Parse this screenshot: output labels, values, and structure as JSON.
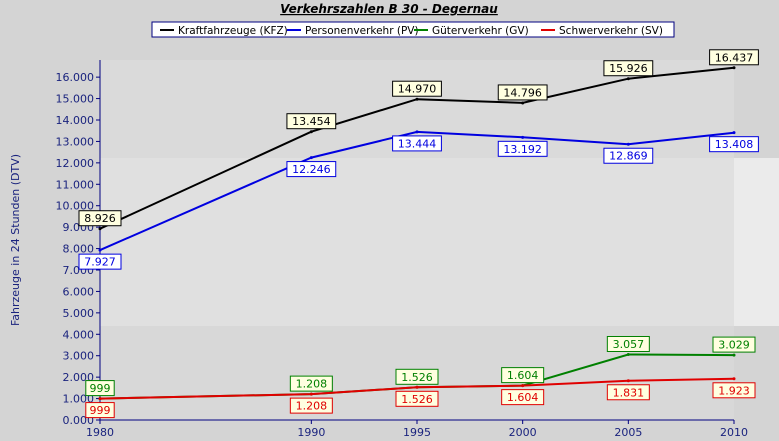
{
  "chart_data": {
    "type": "line",
    "title": "Verkehrszahlen B 30 - Degernau",
    "ylabel": "Fahrzeuge in 24 Stunden (DTV)",
    "xlabel": "",
    "x": [
      1980,
      1990,
      1995,
      2000,
      2005,
      2010
    ],
    "x_ticks": [
      "1980",
      "1990",
      "1995",
      "2000",
      "2005",
      "2010"
    ],
    "ylim": [
      0,
      16800
    ],
    "y_ticks": [
      "0.000",
      "1.000",
      "2.000",
      "3.000",
      "4.000",
      "5.000",
      "6.000",
      "7.000",
      "8.000",
      "9.000",
      "10.000",
      "11.000",
      "12.000",
      "13.000",
      "14.000",
      "15.000",
      "16.000"
    ],
    "grid": false,
    "legend_position": "top",
    "series": [
      {
        "name": "Kraftfahrzeuge (KFZ)",
        "color": "#000000",
        "label_bg": "#ffffe0",
        "values": [
          8926,
          13454,
          14970,
          14796,
          15926,
          16437
        ],
        "labels": [
          "8.926",
          "13.454",
          "14.970",
          "14.796",
          "15.926",
          "16.437"
        ],
        "label_position": "above"
      },
      {
        "name": "Personenverkehr (PV)",
        "color": "#0000e0",
        "label_bg": "#ffffff",
        "values": [
          7927,
          12246,
          13444,
          13192,
          12869,
          13408
        ],
        "labels": [
          "7.927",
          "12.246",
          "13.444",
          "13.192",
          "12.869",
          "13.408"
        ],
        "label_position": "below"
      },
      {
        "name": "Güterverkehr (GV)",
        "color": "#008000",
        "label_bg": "#ffffe0",
        "values": [
          999,
          1208,
          1526,
          1604,
          3057,
          3029
        ],
        "labels": [
          "999",
          "1.208",
          "1.526",
          "1.604",
          "3.057",
          "3.029"
        ],
        "label_position": "above"
      },
      {
        "name": "Schwerverkehr (SV)",
        "color": "#e00000",
        "label_bg": "#ffffe0",
        "values": [
          999,
          1208,
          1526,
          1604,
          1831,
          1923
        ],
        "labels": [
          "999",
          "1.208",
          "1.526",
          "1.604",
          "1.831",
          "1.923"
        ],
        "label_position": "below"
      }
    ]
  }
}
